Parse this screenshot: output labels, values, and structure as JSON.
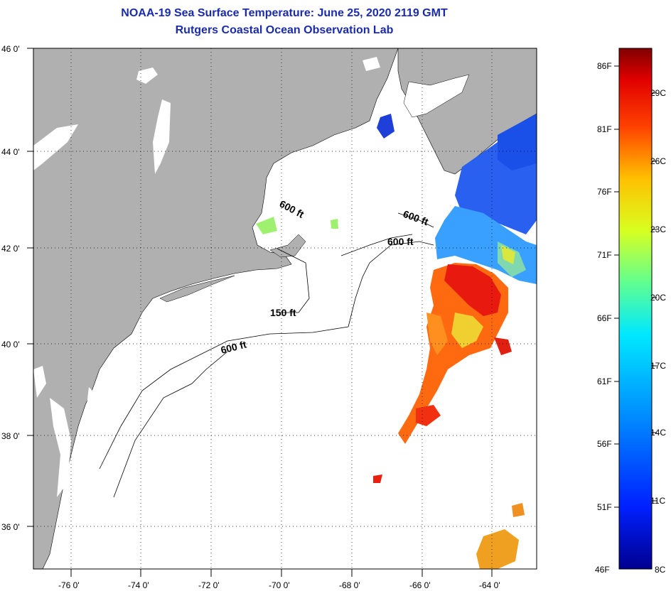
{
  "title": {
    "line1": "NOAA-19 Sea Surface Temperature:  June 25, 2020 2119 GMT",
    "line2": "Rutgers Coastal Ocean Observation Lab"
  },
  "axes": {
    "latitude_labels": [
      "46 0'",
      "44 0'",
      "42 0'",
      "40 0'",
      "38 0'",
      "36 0'"
    ],
    "longitude_labels": [
      "-76 0'",
      "-74 0'",
      "-72 0'",
      "-70 0'",
      "-68 0'",
      "-66 0'",
      "-64 0'"
    ]
  },
  "contour_labels": [
    "600 ft",
    "600 ft",
    "600 ft",
    "150 ft",
    "600 ft"
  ],
  "colorbar": {
    "fahrenheit": [
      "86F",
      "81F",
      "76F",
      "71F",
      "66F",
      "61F",
      "56F",
      "51F",
      "46F"
    ],
    "celsius": [
      "29C",
      "26C",
      "23C",
      "20C",
      "17C",
      "14C",
      "11C",
      "8C"
    ]
  },
  "colors": {
    "land": "#b0b0b0",
    "ocean": "#ffffff",
    "title": "#1a2bb0"
  }
}
